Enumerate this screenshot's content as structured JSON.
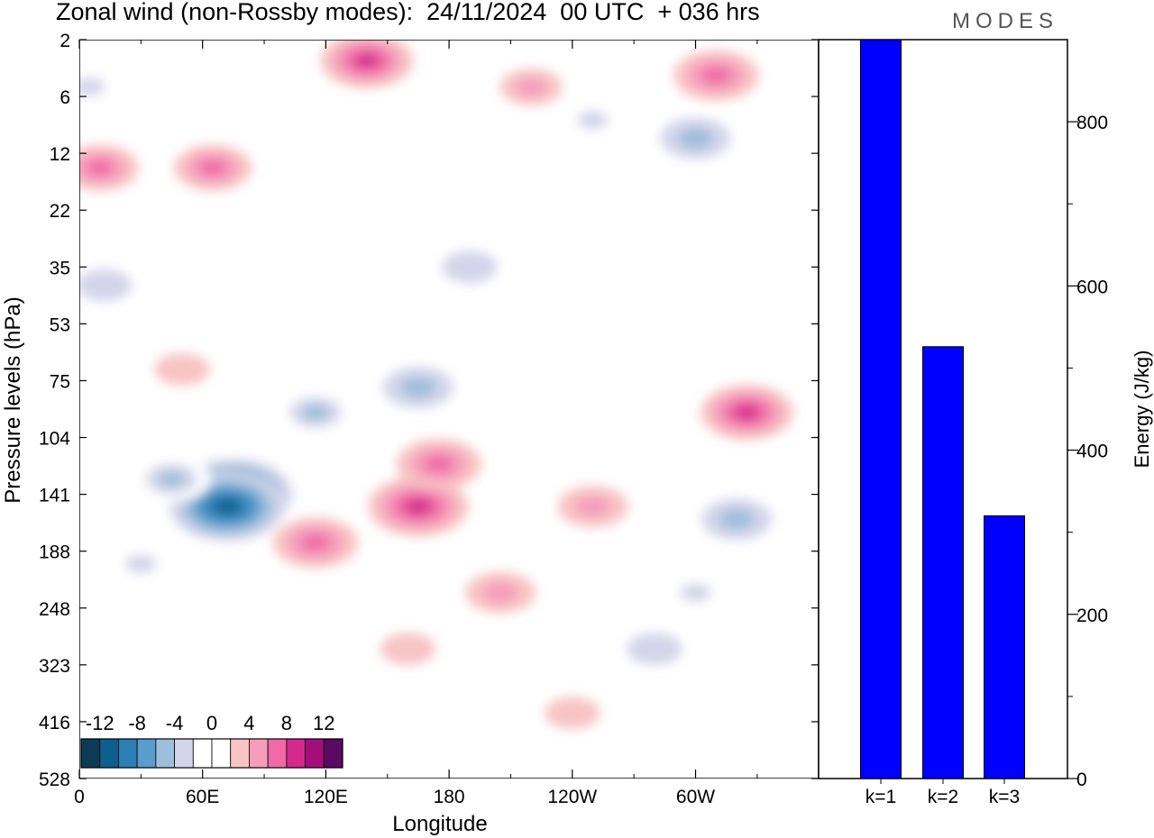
{
  "title": "Zonal wind (non-Rossby modes):  24/11/2024  00 UTC  + 036 hrs",
  "logo": "MODES",
  "chart_data": [
    {
      "type": "heatmap",
      "title": "Zonal wind (non-Rossby modes):  24/11/2024  00 UTC  + 036 hrs",
      "xlabel": "Longitude",
      "ylabel": "Pressure levels (hPa)",
      "x_ticks": [
        "0",
        "60E",
        "120E",
        "180",
        "120W",
        "60W"
      ],
      "y_ticks": [
        "2",
        "6",
        "12",
        "22",
        "35",
        "53",
        "75",
        "104",
        "141",
        "188",
        "248",
        "323",
        "416",
        "528"
      ],
      "colorbar": {
        "labels": [
          "-12",
          "-8",
          "-4",
          "0",
          "4",
          "8",
          "12"
        ],
        "colors": [
          "#0d3b56",
          "#0e5f8c",
          "#2a7fb5",
          "#5a9ccc",
          "#9ebfdc",
          "#d3d6ea",
          "#ffffff",
          "#ffffff",
          "#f8c4c4",
          "#f59dbb",
          "#ef6aa6",
          "#d42a8e",
          "#a40e7a",
          "#5a0a63"
        ]
      },
      "blobs": [
        {
          "lon": 75,
          "p": 141,
          "value": -14
        },
        {
          "lon": 72,
          "p": 150,
          "value": -11
        },
        {
          "lon": 45,
          "p": 130,
          "value": -6
        },
        {
          "lon": 30,
          "p": 200,
          "value": -4
        },
        {
          "lon": 115,
          "p": 90,
          "value": -6
        },
        {
          "lon": 165,
          "p": 78,
          "value": -5
        },
        {
          "lon": 12,
          "p": 40,
          "value": -3
        },
        {
          "lon": 190,
          "p": 35,
          "value": -3
        },
        {
          "lon": 5,
          "p": 5,
          "value": -4
        },
        {
          "lon": 300,
          "p": 10,
          "value": -5
        },
        {
          "lon": 250,
          "p": 8,
          "value": -4
        },
        {
          "lon": 320,
          "p": 160,
          "value": -5
        },
        {
          "lon": 300,
          "p": 230,
          "value": -4
        },
        {
          "lon": 280,
          "p": 300,
          "value": -3
        },
        {
          "lon": 115,
          "p": 180,
          "value": 7
        },
        {
          "lon": 165,
          "p": 150,
          "value": 9
        },
        {
          "lon": 175,
          "p": 120,
          "value": 7
        },
        {
          "lon": 205,
          "p": 230,
          "value": 5
        },
        {
          "lon": 160,
          "p": 300,
          "value": 3
        },
        {
          "lon": 240,
          "p": 400,
          "value": 3
        },
        {
          "lon": 10,
          "p": 14,
          "value": 6
        },
        {
          "lon": 65,
          "p": 14,
          "value": 6
        },
        {
          "lon": 140,
          "p": 3,
          "value": 8
        },
        {
          "lon": 310,
          "p": 4,
          "value": 7
        },
        {
          "lon": 325,
          "p": 90,
          "value": 8
        },
        {
          "lon": 250,
          "p": 150,
          "value": 5
        },
        {
          "lon": 50,
          "p": 70,
          "value": 3
        },
        {
          "lon": 220,
          "p": 5,
          "value": 4
        }
      ]
    },
    {
      "type": "bar",
      "categories": [
        "k=1",
        "k=2",
        "k=3"
      ],
      "values": [
        900,
        526,
        320
      ],
      "ylabel": "Energy (J/kg)",
      "y_ticks": [
        "0",
        "200",
        "400",
        "600",
        "800"
      ],
      "ylim": [
        0,
        900
      ],
      "bar_color": "#0000ff"
    }
  ]
}
